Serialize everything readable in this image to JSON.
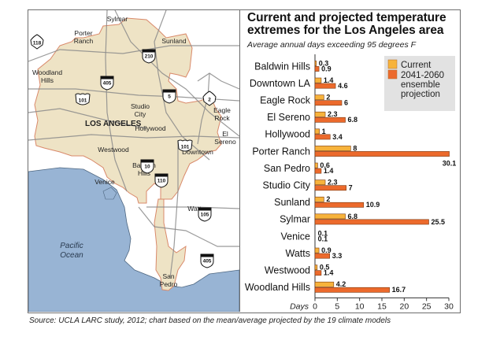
{
  "title_line1": "Current and projected temperature",
  "title_line2": "extremes for the Los Angeles area",
  "subtitle": "Average annual days exceeding 95 degrees F",
  "source": "Source: UCLA LARC study, 2012; chart based on the mean/average projected by the 19 climate models",
  "colors": {
    "current": "#f7b33b",
    "projection": "#ec6a2c",
    "bar_outline": "#7a3a12",
    "legend_bg": "#e2e2e2",
    "land": "#eee3c5",
    "ocean": "#98b4d4",
    "boundary": "#d9896a",
    "road": "#8a8a8a"
  },
  "map": {
    "city_label": "LOS ANGELES",
    "ocean_label_line1": "Pacific",
    "ocean_label_line2": "Ocean",
    "places": [
      {
        "name": "sylmar",
        "lines": [
          "Sylmar"
        ]
      },
      {
        "name": "porter-ranch",
        "lines": [
          "Porter",
          "Ranch"
        ]
      },
      {
        "name": "sunland",
        "lines": [
          "Sunland"
        ]
      },
      {
        "name": "woodland-hills",
        "lines": [
          "Woodland",
          "Hills"
        ]
      },
      {
        "name": "studio-city",
        "lines": [
          "Studio",
          "City"
        ]
      },
      {
        "name": "eagle-rock",
        "lines": [
          "Eagle",
          "Rock"
        ]
      },
      {
        "name": "hollywood",
        "lines": [
          "Hollywood"
        ]
      },
      {
        "name": "el-sereno",
        "lines": [
          "El",
          "Sereno"
        ]
      },
      {
        "name": "westwood",
        "lines": [
          "Westwood"
        ]
      },
      {
        "name": "downtown",
        "lines": [
          "Downtown"
        ]
      },
      {
        "name": "baldwin-hills",
        "lines": [
          "Baldwin",
          "Hills"
        ]
      },
      {
        "name": "venice",
        "lines": [
          "Venice"
        ]
      },
      {
        "name": "watts",
        "lines": [
          "Watts"
        ]
      },
      {
        "name": "san-pedro",
        "lines": [
          "San",
          "Pedro"
        ]
      }
    ],
    "highways": [
      {
        "name": "ca-118",
        "type": "state",
        "number": "118"
      },
      {
        "name": "i-210",
        "type": "interstate",
        "number": "210"
      },
      {
        "name": "i-405-north",
        "type": "interstate",
        "number": "405"
      },
      {
        "name": "us-101-west",
        "type": "us",
        "number": "101"
      },
      {
        "name": "i-5",
        "type": "interstate",
        "number": "5"
      },
      {
        "name": "ca-2",
        "type": "state",
        "number": "2"
      },
      {
        "name": "us-101-central",
        "type": "us",
        "number": "101"
      },
      {
        "name": "i-10",
        "type": "interstate",
        "number": "10"
      },
      {
        "name": "i-110",
        "type": "interstate",
        "number": "110"
      },
      {
        "name": "i-105",
        "type": "interstate",
        "number": "105"
      },
      {
        "name": "i-405-south",
        "type": "interstate",
        "number": "405"
      }
    ]
  },
  "chart_data": {
    "type": "bar",
    "orientation": "horizontal",
    "title": "Current and projected temperature extremes for the Los Angeles area",
    "subtitle": "Average annual days exceeding 95 degrees F",
    "xlabel": "Days",
    "ylabel": "",
    "xlim": [
      0,
      30
    ],
    "xticks": [
      0,
      5,
      10,
      15,
      20,
      25,
      30
    ],
    "grid": false,
    "legend": {
      "position": "top-right",
      "entries": [
        {
          "label_lines": [
            "Current"
          ]
        },
        {
          "label_lines": [
            "2041-2060",
            "ensemble",
            "projection"
          ]
        }
      ]
    },
    "categories": [
      "Baldwin Hills",
      "Downtown LA",
      "Eagle Rock",
      "El Sereno",
      "Hollywood",
      "Porter Ranch",
      "San Pedro",
      "Studio City",
      "Sunland",
      "Sylmar",
      "Venice",
      "Watts",
      "Westwood",
      "Woodland Hills"
    ],
    "series": [
      {
        "name": "Current",
        "values": [
          0.3,
          1.4,
          2,
          2.3,
          1,
          8,
          0.6,
          2.3,
          2,
          6.8,
          0.1,
          0.9,
          0.5,
          4.2
        ]
      },
      {
        "name": "2041-2060 ensemble projection",
        "values": [
          0.9,
          4.6,
          6,
          6.8,
          3.4,
          30.1,
          1.4,
          7,
          10.9,
          25.5,
          0.1,
          3.3,
          1.4,
          16.7
        ]
      }
    ]
  }
}
